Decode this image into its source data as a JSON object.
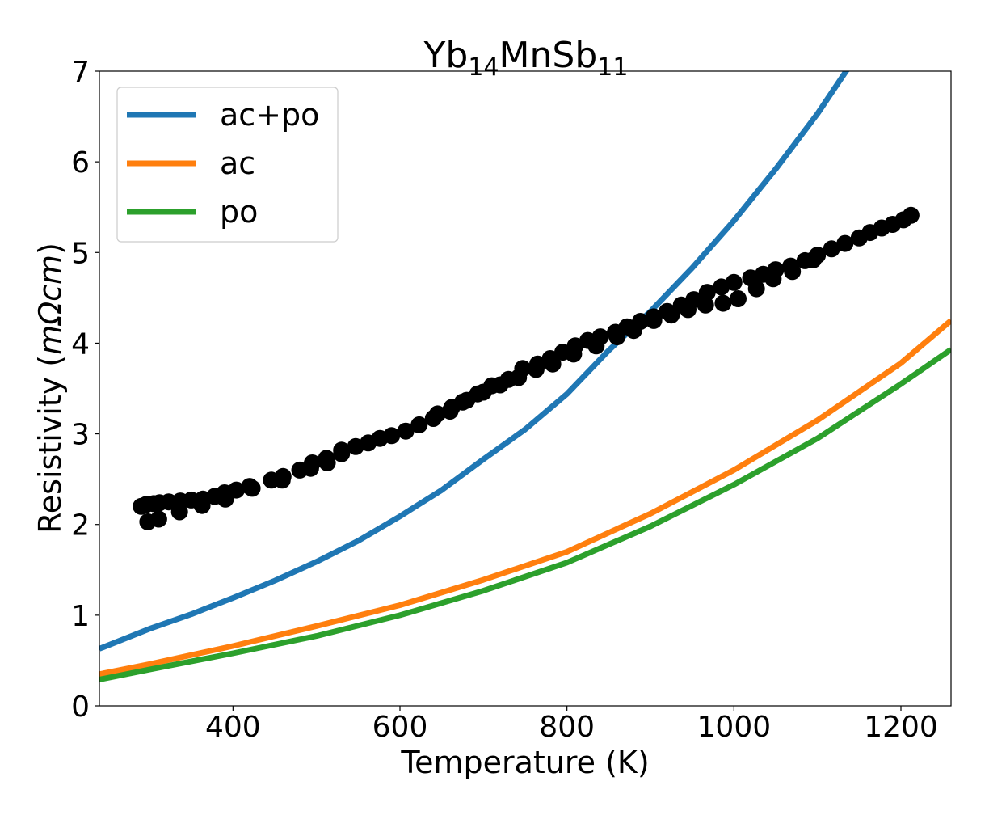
{
  "chart_data": {
    "type": "line",
    "title": {
      "base1": "Yb",
      "sub1": "14",
      "mid": "MnSb",
      "sub2": "11"
    },
    "xlabel": "Temperature (K)",
    "ylabel": {
      "prefix": "Resistivity (",
      "unit": "mΩcm",
      "suffix": ")"
    },
    "xlim": [
      240,
      1260
    ],
    "ylim": [
      0,
      7
    ],
    "xticks": [
      400,
      600,
      800,
      1000,
      1200
    ],
    "yticks": [
      0,
      1,
      2,
      3,
      4,
      5,
      6,
      7
    ],
    "grid": false,
    "legend_position": "top-left",
    "series": [
      {
        "name": "ac+po",
        "color": "#1f77b4",
        "x": [
          240,
          300,
          350,
          400,
          450,
          500,
          550,
          600,
          650,
          700,
          750,
          800,
          850,
          900,
          950,
          1000,
          1050,
          1100,
          1138
        ],
        "y": [
          0.63,
          0.85,
          1.01,
          1.19,
          1.38,
          1.59,
          1.82,
          2.09,
          2.38,
          2.72,
          3.05,
          3.44,
          3.92,
          4.35,
          4.83,
          5.35,
          5.92,
          6.53,
          7.05
        ]
      },
      {
        "name": "ac",
        "color": "#ff7f0e",
        "x": [
          240,
          300,
          400,
          500,
          600,
          700,
          800,
          900,
          1000,
          1100,
          1200,
          1260
        ],
        "y": [
          0.35,
          0.46,
          0.66,
          0.88,
          1.11,
          1.39,
          1.7,
          2.12,
          2.6,
          3.15,
          3.78,
          4.25
        ]
      },
      {
        "name": "po",
        "color": "#2ca02c",
        "x": [
          240,
          300,
          400,
          500,
          600,
          700,
          800,
          900,
          1000,
          1100,
          1200,
          1260
        ],
        "y": [
          0.29,
          0.4,
          0.58,
          0.77,
          1.0,
          1.27,
          1.58,
          1.98,
          2.44,
          2.95,
          3.55,
          3.93
        ]
      }
    ],
    "measured": {
      "color": "#000000",
      "x": [
        290,
        296,
        305,
        312,
        323,
        337,
        350,
        364,
        378,
        390,
        404,
        420,
        446,
        460,
        480,
        495,
        512,
        530,
        547,
        562,
        576,
        590,
        607,
        623,
        640,
        660,
        675,
        693,
        710,
        730,
        747,
        765,
        780,
        795,
        810,
        825,
        840,
        858,
        872,
        888,
        904,
        920,
        937,
        952,
        968,
        985,
        1000,
        1020,
        1035,
        1050,
        1068,
        1085,
        1100,
        1117,
        1133,
        1150,
        1163,
        1177,
        1190,
        1203,
        1212,
        298,
        311,
        336,
        363,
        391,
        423,
        459,
        493,
        513,
        530,
        645,
        662,
        680,
        700,
        720,
        742,
        763,
        783,
        808,
        835,
        860,
        880,
        904,
        925,
        945,
        966,
        987,
        1005,
        1027,
        1047,
        1070,
        1095
      ],
      "y": [
        2.2,
        2.22,
        2.23,
        2.24,
        2.25,
        2.26,
        2.27,
        2.28,
        2.31,
        2.35,
        2.38,
        2.42,
        2.49,
        2.53,
        2.6,
        2.68,
        2.73,
        2.82,
        2.86,
        2.9,
        2.95,
        2.98,
        3.03,
        3.1,
        3.17,
        3.25,
        3.35,
        3.44,
        3.53,
        3.6,
        3.72,
        3.77,
        3.83,
        3.9,
        3.97,
        4.03,
        4.07,
        4.12,
        4.18,
        4.24,
        4.29,
        4.35,
        4.42,
        4.48,
        4.56,
        4.62,
        4.67,
        4.72,
        4.76,
        4.81,
        4.85,
        4.91,
        4.97,
        5.04,
        5.1,
        5.16,
        5.22,
        5.27,
        5.31,
        5.36,
        5.41,
        2.03,
        2.06,
        2.14,
        2.21,
        2.28,
        2.4,
        2.49,
        2.62,
        2.68,
        2.78,
        3.22,
        3.29,
        3.37,
        3.46,
        3.54,
        3.62,
        3.71,
        3.77,
        3.88,
        3.97,
        4.07,
        4.14,
        4.25,
        4.31,
        4.37,
        4.42,
        4.44,
        4.49,
        4.6,
        4.71,
        4.79,
        4.92
      ]
    }
  }
}
